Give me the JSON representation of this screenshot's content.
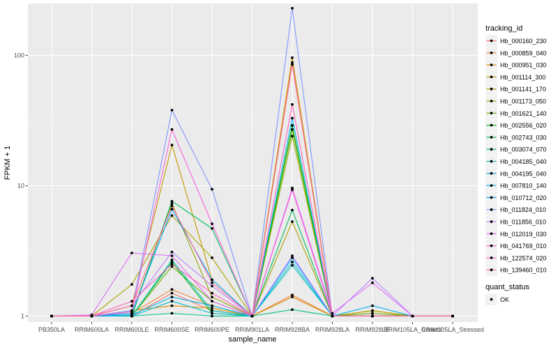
{
  "chart_data": {
    "type": "line",
    "xlabel": "sample_name",
    "ylabel": "FPKM + 1",
    "y_scale": "log10",
    "ylim": [
      0.9,
      250
    ],
    "y_ticks": [
      {
        "value": 1,
        "label": "1"
      },
      {
        "value": 10,
        "label": "10"
      },
      {
        "value": 100,
        "label": "100"
      }
    ],
    "categories": [
      "PB350LA",
      "RRIM600LA",
      "RRIM600LE",
      "RRIM600SE",
      "RRIM600PE",
      "RRIM901LA",
      "RRIM928BA",
      "RRIM928LA",
      "RRIM928LE",
      "RRIM105LA_Control",
      "RRIM105LA_Stressed"
    ],
    "grid": true,
    "legend_position": "right",
    "series": [
      {
        "name": "Hb_000160_230",
        "color": "#F8766D",
        "values": [
          1,
          1,
          1,
          1.5,
          1.1,
          1,
          88,
          1,
          1,
          1,
          1
        ]
      },
      {
        "name": "Hb_000859_040",
        "color": "#EC8239",
        "values": [
          1,
          1,
          1.05,
          1.6,
          1.2,
          1,
          1.45,
          1,
          1,
          1,
          1
        ]
      },
      {
        "name": "Hb_000951_030",
        "color": "#DB8E00",
        "values": [
          1,
          1,
          1.1,
          1.2,
          1.15,
          1,
          1.4,
          1,
          1.05,
          1,
          1
        ]
      },
      {
        "name": "Hb_001114_300",
        "color": "#C79800",
        "values": [
          1,
          1,
          1.2,
          20.5,
          1.9,
          1,
          96,
          1,
          1.1,
          1,
          1
        ]
      },
      {
        "name": "Hb_001141_170",
        "color": "#AEA200",
        "values": [
          1,
          1,
          1.75,
          5.9,
          2.8,
          1,
          5.3,
          1,
          1.1,
          1,
          1
        ]
      },
      {
        "name": "Hb_001173_050",
        "color": "#8FAA00",
        "values": [
          1,
          1,
          1.05,
          7.3,
          1.4,
          1,
          24,
          1,
          1,
          1,
          1
        ]
      },
      {
        "name": "Hb_001621_140",
        "color": "#64B200",
        "values": [
          1,
          1,
          1,
          2.4,
          1.3,
          1,
          27,
          1,
          1.05,
          1,
          1
        ]
      },
      {
        "name": "Hb_002556_020",
        "color": "#00B81B",
        "values": [
          1,
          1,
          1,
          2.6,
          1.05,
          1,
          29,
          1,
          1,
          1,
          1
        ]
      },
      {
        "name": "Hb_002743_030",
        "color": "#00BD5C",
        "values": [
          1,
          1,
          1,
          7.6,
          4.7,
          1,
          6.5,
          1,
          1,
          1,
          1
        ]
      },
      {
        "name": "Hb_003074_070",
        "color": "#00C08E",
        "values": [
          1,
          1,
          1,
          1.05,
          1,
          1,
          1.12,
          1,
          1,
          1,
          1
        ]
      },
      {
        "name": "Hb_004185_040",
        "color": "#00C1B7",
        "values": [
          1,
          1,
          1,
          2.7,
          1.1,
          1,
          2.45,
          1,
          1,
          1,
          1
        ]
      },
      {
        "name": "Hb_004195_040",
        "color": "#00BDD4",
        "values": [
          1,
          1,
          1,
          1.3,
          1.05,
          1,
          2.6,
          1,
          1,
          1,
          1
        ]
      },
      {
        "name": "Hb_007810_140",
        "color": "#00B5EE",
        "values": [
          1,
          1,
          1.02,
          1.4,
          1.2,
          1,
          33,
          1,
          1.2,
          1,
          1
        ]
      },
      {
        "name": "Hb_010712_020",
        "color": "#00A7FF",
        "values": [
          1,
          1,
          1.05,
          6.6,
          1.9,
          1,
          2.8,
          1,
          1,
          1,
          1
        ]
      },
      {
        "name": "Hb_011824_010",
        "color": "#7F96FF",
        "values": [
          1,
          1,
          1.1,
          38,
          9.4,
          1,
          230,
          1,
          1,
          1,
          1
        ]
      },
      {
        "name": "Hb_011856_010",
        "color": "#BC81FF",
        "values": [
          1,
          1,
          1.2,
          3.1,
          1.7,
          1,
          2.9,
          1,
          1.95,
          1,
          1
        ]
      },
      {
        "name": "Hb_012019_030",
        "color": "#E26EF7",
        "values": [
          1,
          1.02,
          3.05,
          2.9,
          1.3,
          1,
          9.6,
          1.05,
          1.8,
          1,
          1
        ]
      },
      {
        "name": "Hb_041769_010",
        "color": "#F863DF",
        "values": [
          1,
          1,
          1.08,
          27,
          5.1,
          1,
          9.3,
          1,
          1,
          1,
          1
        ]
      },
      {
        "name": "Hb_122574_020",
        "color": "#FF62BF",
        "values": [
          1,
          1,
          1.3,
          2.5,
          1.5,
          1,
          42,
          1,
          1,
          1,
          1
        ]
      },
      {
        "name": "Hb_139460_010",
        "color": "#FF6A98",
        "values": [
          1,
          1,
          1.2,
          7,
          1.8,
          1,
          85,
          1,
          1,
          1,
          1
        ]
      }
    ],
    "quant_status_legend": {
      "title": "quant_status",
      "entries": [
        "OK"
      ]
    }
  },
  "legend": {
    "title": "tracking_id"
  }
}
